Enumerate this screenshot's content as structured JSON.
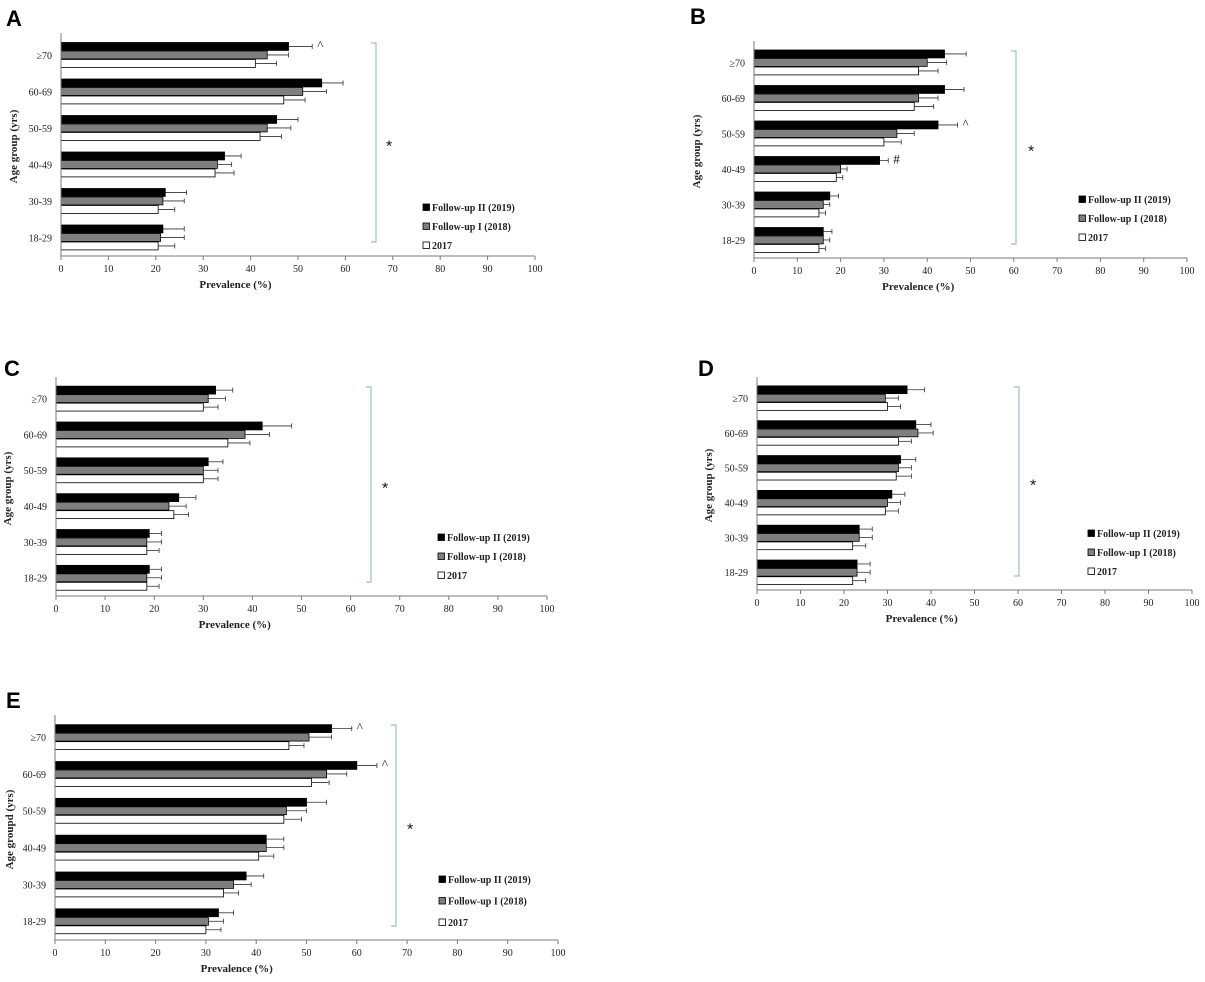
{
  "chart_data": [
    {
      "type": "bar",
      "panel": "A",
      "categories": [
        "≥70",
        "60-69",
        "50-59",
        "40-49",
        "30-39",
        "18-29"
      ],
      "series": [
        {
          "name": "Follow-up II (2019)",
          "values": [
            48,
            55,
            45.5,
            34.5,
            22,
            21.5
          ],
          "errors": [
            5,
            4.5,
            4.5,
            3.5,
            4.5,
            4.5
          ]
        },
        {
          "name": "Follow-up I (2018)",
          "values": [
            43.5,
            51,
            43.5,
            33,
            21.5,
            21
          ],
          "errors": [
            4.5,
            5,
            5,
            3,
            4.5,
            5
          ]
        },
        {
          "name": "2017",
          "values": [
            41,
            47,
            42,
            32.5,
            20.5,
            20.5
          ],
          "errors": [
            4.5,
            4.5,
            4.5,
            4,
            3.5,
            3.5
          ]
        }
      ],
      "annotations": [
        {
          "category": "≥70",
          "text": "^"
        }
      ],
      "significance": "*",
      "xlabel": "Prevalence (%)",
      "ylabel": "Age group (yrs)",
      "xlim": [
        0,
        100
      ],
      "xticks": [
        0,
        10,
        20,
        30,
        40,
        50,
        60,
        70,
        80,
        90,
        100
      ]
    },
    {
      "type": "bar",
      "panel": "B",
      "categories": [
        "≥70",
        "60-69",
        "50-59",
        "40-49",
        "30-39",
        "18-29"
      ],
      "series": [
        {
          "name": "Follow-up II (2019)",
          "values": [
            44,
            44,
            42.5,
            29,
            17.5,
            16
          ],
          "errors": [
            5,
            4.5,
            4.5,
            2,
            2,
            2
          ]
        },
        {
          "name": "Follow-up I (2018)",
          "values": [
            40,
            38,
            33,
            20,
            16,
            16
          ],
          "errors": [
            4.5,
            4.5,
            4,
            1.5,
            1.5,
            1.5
          ]
        },
        {
          "name": "2017",
          "values": [
            38,
            37,
            30,
            19,
            15,
            15
          ],
          "errors": [
            4.5,
            4.5,
            4,
            1.5,
            1.5,
            1.5
          ]
        }
      ],
      "annotations": [
        {
          "category": "50-59",
          "text": "^"
        },
        {
          "category": "40-49",
          "text": "#"
        }
      ],
      "significance": "*",
      "xlabel": "Prevalence (%)",
      "ylabel": "Age group (yrs)",
      "xlim": [
        0,
        100
      ],
      "xticks": [
        0,
        10,
        20,
        30,
        40,
        50,
        60,
        70,
        80,
        90,
        100
      ]
    },
    {
      "type": "bar",
      "panel": "C",
      "categories": [
        "≥70",
        "60-69",
        "50-59",
        "40-49",
        "30-39",
        "18-29"
      ],
      "series": [
        {
          "name": "Follow-up II (2019)",
          "values": [
            32.5,
            42,
            31,
            25,
            19,
            19
          ],
          "errors": [
            3.5,
            6,
            3,
            3.5,
            2.5,
            2.5
          ]
        },
        {
          "name": "Follow-up I (2018)",
          "values": [
            31,
            38.5,
            30,
            23,
            18.5,
            18.5
          ],
          "errors": [
            3.5,
            5,
            3,
            3.5,
            3,
            3
          ]
        },
        {
          "name": "2017",
          "values": [
            30,
            35,
            30,
            24,
            18.5,
            18.5
          ],
          "errors": [
            3,
            4.5,
            3,
            3,
            2.5,
            2.5
          ]
        }
      ],
      "annotations": [],
      "significance": "*",
      "xlabel": "Prevalence (%)",
      "ylabel": "Age group (yrs)",
      "xlim": [
        0,
        100
      ],
      "xticks": [
        0,
        10,
        20,
        30,
        40,
        50,
        60,
        70,
        80,
        90,
        100
      ]
    },
    {
      "type": "bar",
      "panel": "D",
      "categories": [
        "≥70",
        "60-69",
        "50-59",
        "40-49",
        "30-39",
        "18-29"
      ],
      "series": [
        {
          "name": "Follow-up II (2019)",
          "values": [
            34.5,
            36.5,
            33,
            31,
            23.5,
            23
          ],
          "errors": [
            4,
            3.5,
            3.5,
            3,
            3,
            3
          ]
        },
        {
          "name": "Follow-up I (2018)",
          "values": [
            29.5,
            37,
            32.5,
            30,
            23.5,
            23
          ],
          "errors": [
            3,
            3.5,
            3,
            3,
            3,
            3
          ]
        },
        {
          "name": "2017",
          "values": [
            30,
            32.5,
            32,
            29.5,
            22,
            22
          ],
          "errors": [
            3,
            3,
            3.5,
            3,
            3,
            3
          ]
        }
      ],
      "annotations": [],
      "significance": "*",
      "xlabel": "Prevalence (%)",
      "ylabel": "Age group  (yrs)",
      "xlim": [
        0,
        100
      ],
      "xticks": [
        0,
        10,
        20,
        30,
        40,
        50,
        60,
        70,
        80,
        90,
        100
      ]
    },
    {
      "type": "bar",
      "panel": "E",
      "categories": [
        "≥70",
        "60-69",
        "50-59",
        "40-49",
        "30-39",
        "18-29"
      ],
      "series": [
        {
          "name": "Follow-up II (2019)",
          "values": [
            55,
            60,
            50,
            42,
            38,
            32.5
          ],
          "errors": [
            4,
            4,
            4,
            3.5,
            3.5,
            3
          ]
        },
        {
          "name": "Follow-up I (2018)",
          "values": [
            50.5,
            54,
            46,
            42,
            35.5,
            30.5
          ],
          "errors": [
            4.5,
            4,
            4,
            3.5,
            3.5,
            3
          ]
        },
        {
          "name": "2017",
          "values": [
            46.5,
            51,
            45.5,
            40.5,
            33.5,
            30
          ],
          "errors": [
            3,
            3.5,
            3.5,
            3,
            3,
            3
          ]
        }
      ],
      "annotations": [
        {
          "category": "≥70",
          "text": "^"
        },
        {
          "category": "60-69",
          "text": "^"
        }
      ],
      "significance": "*",
      "xlabel": "Prevalence (%)",
      "ylabel": "Age groupd (yrs)",
      "xlim": [
        0,
        100
      ],
      "xticks": [
        0,
        10,
        20,
        30,
        40,
        50,
        60,
        70,
        80,
        90,
        100
      ]
    }
  ],
  "colors": {
    "series": [
      "#000000",
      "#7f7f7f",
      "#ffffff"
    ],
    "stroke": "#000000",
    "bracket": "#9dbbd8",
    "axis": "#7a7a7a"
  }
}
